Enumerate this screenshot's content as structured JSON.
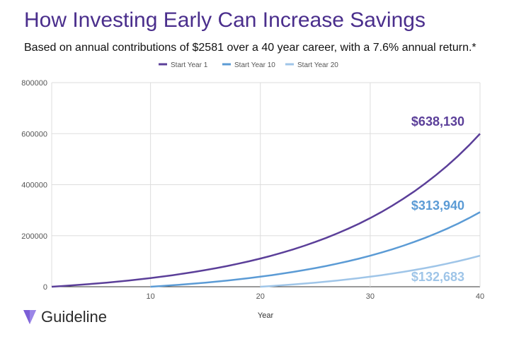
{
  "header": {
    "title": "How Investing Early Can Increase Savings",
    "subtitle": "Based on annual contributions of $2581 over a 40 year career, with a 7.6% annual return.*"
  },
  "brand": {
    "name": "Guideline",
    "logo_icon": "guideline-logo-icon",
    "logo_color": "#7b5ed6"
  },
  "chart_data": {
    "type": "line",
    "xlabel": "Year",
    "ylabel": "",
    "xlim": [
      1,
      40
    ],
    "ylim": [
      0,
      800000
    ],
    "x_ticks": [
      10,
      20,
      30,
      40
    ],
    "y_ticks": [
      0,
      200000,
      400000,
      600000,
      800000
    ],
    "grid": true,
    "legend_position": "top",
    "annual_contribution": 2581,
    "annual_return": 0.076,
    "series": [
      {
        "name": "Start Year 1",
        "start_year": 1,
        "color": "#5b3f99",
        "final_label": "$638,130"
      },
      {
        "name": "Start Year 10",
        "start_year": 10,
        "color": "#5b9bd5",
        "final_label": "$313,940"
      },
      {
        "name": "Start Year  20",
        "start_year": 20,
        "color": "#9fc5e8",
        "final_label": "$132,683"
      }
    ]
  }
}
